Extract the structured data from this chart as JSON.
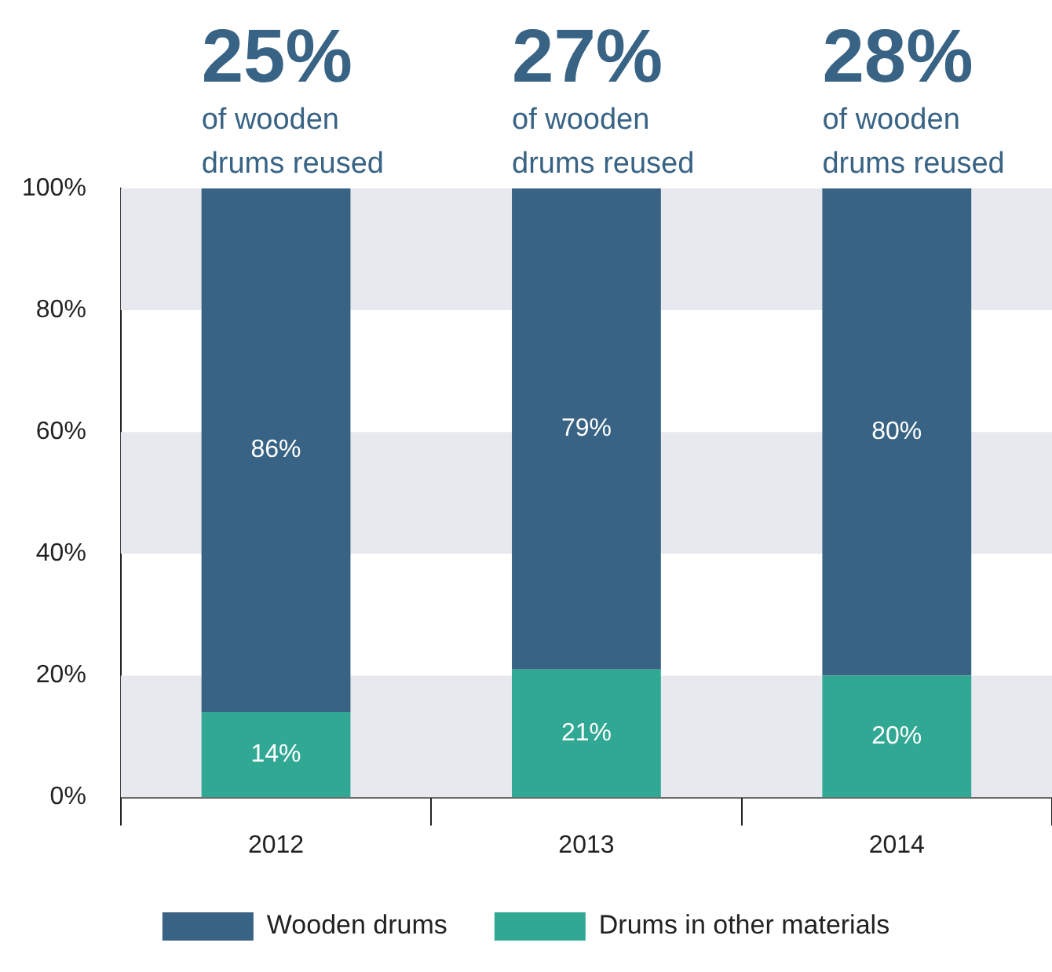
{
  "chart_data": {
    "type": "bar",
    "stacked": true,
    "categories": [
      "2012",
      "2013",
      "2014"
    ],
    "series": [
      {
        "name": "Drums in other materials",
        "color": "#31a894",
        "values": [
          14,
          21,
          20
        ],
        "value_labels": [
          "14%",
          "21%",
          "20%"
        ]
      },
      {
        "name": "Wooden drums",
        "color": "#386384",
        "values": [
          86,
          79,
          80
        ],
        "value_labels": [
          "86%",
          "79%",
          "80%"
        ]
      }
    ],
    "ylim": [
      0,
      100
    ],
    "yticks": [
      {
        "value": 0,
        "label": "0%"
      },
      {
        "value": 20,
        "label": "20%"
      },
      {
        "value": 40,
        "label": "40%"
      },
      {
        "value": 60,
        "label": "60%"
      },
      {
        "value": 80,
        "label": "80%"
      },
      {
        "value": 100,
        "label": "100%"
      }
    ],
    "legend": "bottom",
    "annotations": [
      "25%",
      "of wooden drums reused",
      "27%",
      "of wooden drums reused",
      "28%",
      "of wooden drums reused"
    ]
  }
}
